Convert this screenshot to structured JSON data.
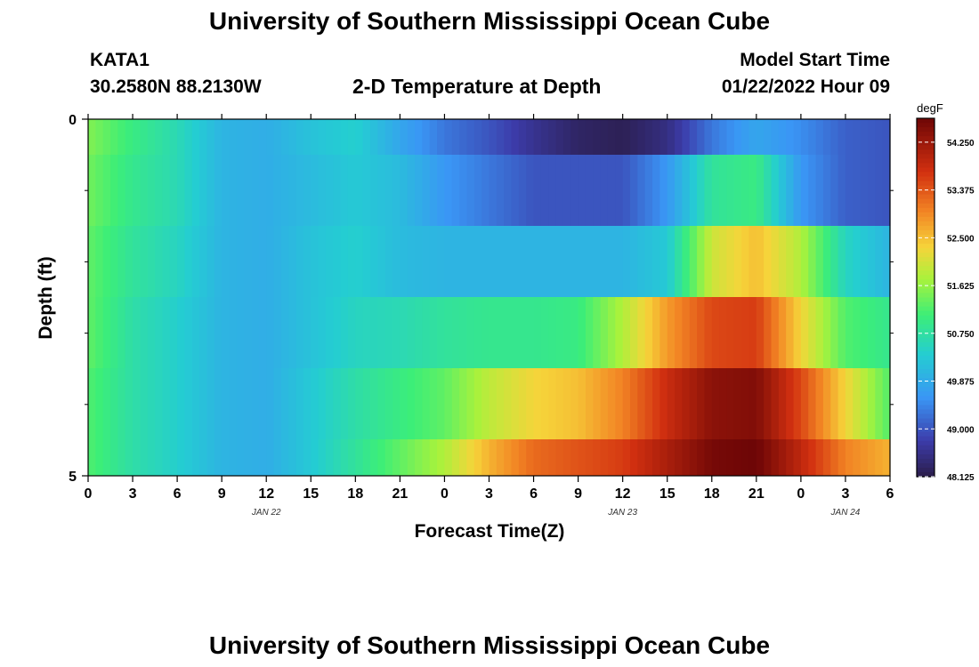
{
  "header": {
    "title": "University of Southern Mississippi Ocean Cube",
    "station_id": "KATA1",
    "location": "30.2580N  88.2130W",
    "subtitle": "2-D Temperature at Depth",
    "model_start_label": "Model Start Time",
    "model_start_value": "01/22/2022 Hour 09",
    "bottom_title": "University of Southern Mississippi Ocean Cube"
  },
  "chart_data": {
    "type": "heatmap",
    "title": "2-D Temperature at Depth",
    "xlabel": "Forecast Time(Z)",
    "ylabel": "Depth (ft)",
    "x_tick_labels": [
      "0",
      "3",
      "6",
      "9",
      "12",
      "15",
      "18",
      "21",
      "0",
      "3",
      "6",
      "9",
      "12",
      "15",
      "18",
      "21",
      "0",
      "3",
      "6"
    ],
    "date_labels": [
      "JAN 22",
      "JAN 23",
      "JAN 24"
    ],
    "y_tick_labels": [
      "0",
      "5"
    ],
    "ylim": [
      0,
      5
    ],
    "x_range_hours": [
      0,
      54
    ],
    "depth_rows": [
      0,
      1,
      2,
      3,
      4,
      5
    ],
    "value_range": [
      48.125,
      54.688
    ],
    "colorbar": {
      "unit": "degF",
      "tick_labels": [
        "54.250",
        "53.375",
        "52.500",
        "51.625",
        "50.750",
        "49.875",
        "49.000",
        "48.125"
      ],
      "ticks": [
        54.25,
        53.375,
        52.5,
        51.625,
        50.75,
        49.875,
        49.0,
        48.125
      ]
    },
    "series": [
      {
        "name": "0",
        "x": [
          0,
          3,
          6,
          9,
          12,
          15,
          18,
          21,
          24,
          27,
          30,
          33,
          36,
          39,
          42,
          45,
          48,
          51,
          54
        ],
        "values": [
          51.5,
          51.0,
          50.6,
          50.0,
          49.9,
          50.2,
          50.4,
          49.8,
          49.3,
          49.0,
          48.6,
          48.3,
          48.2,
          48.5,
          49.3,
          49.8,
          49.5,
          49.1,
          49.0
        ]
      },
      {
        "name": "1",
        "x": [
          0,
          3,
          6,
          9,
          12,
          15,
          18,
          21,
          24,
          27,
          30,
          33,
          36,
          39,
          42,
          45,
          48,
          51,
          54
        ],
        "values": [
          51.4,
          50.9,
          50.6,
          50.0,
          49.9,
          50.1,
          50.3,
          50.1,
          49.6,
          49.3,
          49.0,
          49.0,
          49.0,
          49.6,
          50.8,
          51.0,
          49.6,
          49.1,
          49.0
        ]
      },
      {
        "name": "2",
        "x": [
          0,
          3,
          6,
          9,
          12,
          15,
          18,
          21,
          24,
          27,
          30,
          33,
          36,
          39,
          42,
          45,
          48,
          51,
          54
        ],
        "values": [
          51.3,
          50.8,
          50.5,
          50.0,
          49.9,
          50.2,
          50.4,
          50.1,
          50.0,
          50.0,
          50.0,
          50.0,
          50.0,
          50.3,
          52.0,
          52.5,
          51.8,
          50.5,
          50.0
        ]
      },
      {
        "name": "3",
        "x": [
          0,
          3,
          6,
          9,
          12,
          15,
          18,
          21,
          24,
          27,
          30,
          33,
          36,
          39,
          42,
          45,
          48,
          51,
          54
        ],
        "values": [
          51.3,
          50.7,
          50.4,
          50.0,
          49.9,
          50.2,
          50.5,
          50.6,
          50.8,
          50.9,
          50.9,
          51.0,
          51.8,
          52.8,
          53.5,
          53.6,
          52.3,
          51.2,
          50.9
        ]
      },
      {
        "name": "4",
        "x": [
          0,
          3,
          6,
          9,
          12,
          15,
          18,
          21,
          24,
          27,
          30,
          33,
          36,
          39,
          42,
          45,
          48,
          51,
          54
        ],
        "values": [
          51.2,
          50.7,
          50.4,
          50.0,
          49.9,
          50.3,
          50.7,
          51.0,
          51.3,
          51.9,
          52.3,
          52.5,
          53.0,
          53.8,
          54.4,
          54.5,
          53.5,
          52.3,
          51.2
        ]
      },
      {
        "name": "5",
        "x": [
          0,
          3,
          6,
          9,
          12,
          15,
          18,
          21,
          24,
          27,
          30,
          33,
          36,
          39,
          42,
          45,
          48,
          51,
          54
        ],
        "values": [
          51.2,
          50.7,
          50.4,
          50.0,
          49.9,
          50.3,
          50.8,
          51.3,
          51.8,
          52.6,
          53.2,
          53.4,
          53.6,
          54.1,
          54.6,
          54.7,
          53.9,
          53.0,
          52.6
        ]
      }
    ]
  },
  "colors": {
    "cold": "#2b1d4b",
    "cool": "#3aa0f5",
    "mid": "#a8f23c",
    "warm": "#f29a2c",
    "hot": "#6d0606"
  }
}
